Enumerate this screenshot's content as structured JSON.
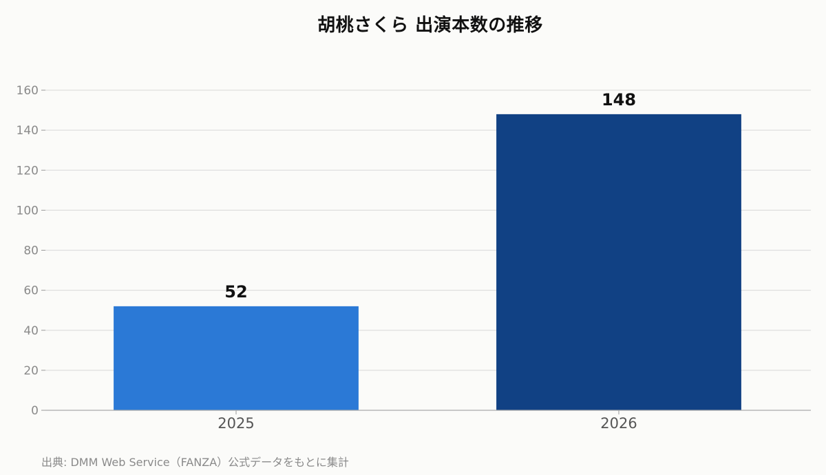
{
  "title": "胡桃さくら 出演本数の推移",
  "source_note": "出典: DMM Web Service（FANZA）公式データをもとに集計",
  "chart_data": {
    "type": "bar",
    "title": "胡桃さくら 出演本数の推移",
    "categories": [
      "2025",
      "2026"
    ],
    "values": [
      52,
      148
    ],
    "bar_colors": [
      "#2b79d6",
      "#114184"
    ],
    "data_labels": [
      "52",
      "148"
    ],
    "xlabel": "",
    "ylabel": "",
    "ylim": [
      0,
      160
    ],
    "yticks": [
      0,
      20,
      40,
      60,
      80,
      100,
      120,
      140,
      160
    ],
    "grid": true,
    "legend": "none"
  }
}
